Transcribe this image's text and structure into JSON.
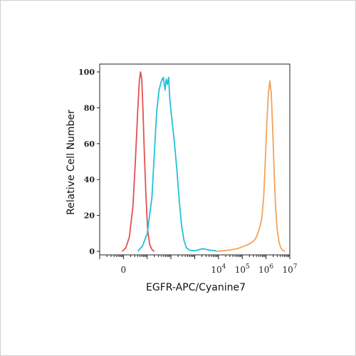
{
  "chart_data": {
    "type": "line",
    "xlabel": "EGFR-APC/Cyanine7",
    "ylabel": "Relative Cell Number",
    "x_scale": "biexponential",
    "xlim": [
      -1,
      7
    ],
    "ylim": [
      0,
      100
    ],
    "x_ticks": [
      {
        "base": "0",
        "exp": ""
      },
      {
        "base": "10",
        "exp": "4"
      },
      {
        "base": "10",
        "exp": "5"
      },
      {
        "base": "10",
        "exp": "6"
      },
      {
        "base": "10",
        "exp": "7"
      }
    ],
    "y_ticks": [
      "0",
      "20",
      "40",
      "60",
      "80",
      "100"
    ],
    "grid": false,
    "series": [
      {
        "color": "#e35050",
        "points": [
          [
            -0.05,
            0
          ],
          [
            0.1,
            2
          ],
          [
            0.25,
            8
          ],
          [
            0.4,
            25
          ],
          [
            0.5,
            50
          ],
          [
            0.6,
            78
          ],
          [
            0.67,
            95
          ],
          [
            0.72,
            100
          ],
          [
            0.77,
            96
          ],
          [
            0.82,
            80
          ],
          [
            0.88,
            55
          ],
          [
            0.95,
            30
          ],
          [
            1.02,
            12
          ],
          [
            1.1,
            4
          ],
          [
            1.2,
            1
          ],
          [
            1.3,
            0
          ]
        ]
      },
      {
        "color": "#22c0dc",
        "points": [
          [
            0.6,
            0
          ],
          [
            0.8,
            3
          ],
          [
            1.0,
            10
          ],
          [
            1.2,
            30
          ],
          [
            1.3,
            55
          ],
          [
            1.4,
            78
          ],
          [
            1.5,
            90
          ],
          [
            1.6,
            95
          ],
          [
            1.68,
            97
          ],
          [
            1.75,
            90
          ],
          [
            1.8,
            96
          ],
          [
            1.85,
            93
          ],
          [
            1.9,
            97
          ],
          [
            1.95,
            85
          ],
          [
            2.05,
            72
          ],
          [
            2.15,
            60
          ],
          [
            2.25,
            45
          ],
          [
            2.35,
            28
          ],
          [
            2.45,
            14
          ],
          [
            2.55,
            6
          ],
          [
            2.65,
            2
          ],
          [
            2.8,
            0.5
          ],
          [
            3.0,
            0.3
          ],
          [
            3.2,
            1
          ],
          [
            3.35,
            1.5
          ],
          [
            3.5,
            1
          ],
          [
            3.7,
            0.5
          ],
          [
            3.9,
            0.3
          ]
        ]
      },
      {
        "color": "#f2a35a",
        "points": [
          [
            3.9,
            0
          ],
          [
            4.2,
            0.3
          ],
          [
            4.5,
            0.8
          ],
          [
            4.8,
            1.5
          ],
          [
            5.0,
            2.5
          ],
          [
            5.2,
            3.5
          ],
          [
            5.4,
            5
          ],
          [
            5.5,
            6
          ],
          [
            5.6,
            8
          ],
          [
            5.7,
            12
          ],
          [
            5.75,
            14
          ],
          [
            5.82,
            18
          ],
          [
            5.9,
            30
          ],
          [
            5.97,
            50
          ],
          [
            6.03,
            70
          ],
          [
            6.1,
            88
          ],
          [
            6.16,
            95
          ],
          [
            6.22,
            88
          ],
          [
            6.28,
            68
          ],
          [
            6.34,
            45
          ],
          [
            6.4,
            25
          ],
          [
            6.47,
            12
          ],
          [
            6.55,
            5
          ],
          [
            6.62,
            2
          ],
          [
            6.7,
            0.5
          ],
          [
            6.8,
            0
          ]
        ]
      }
    ]
  }
}
